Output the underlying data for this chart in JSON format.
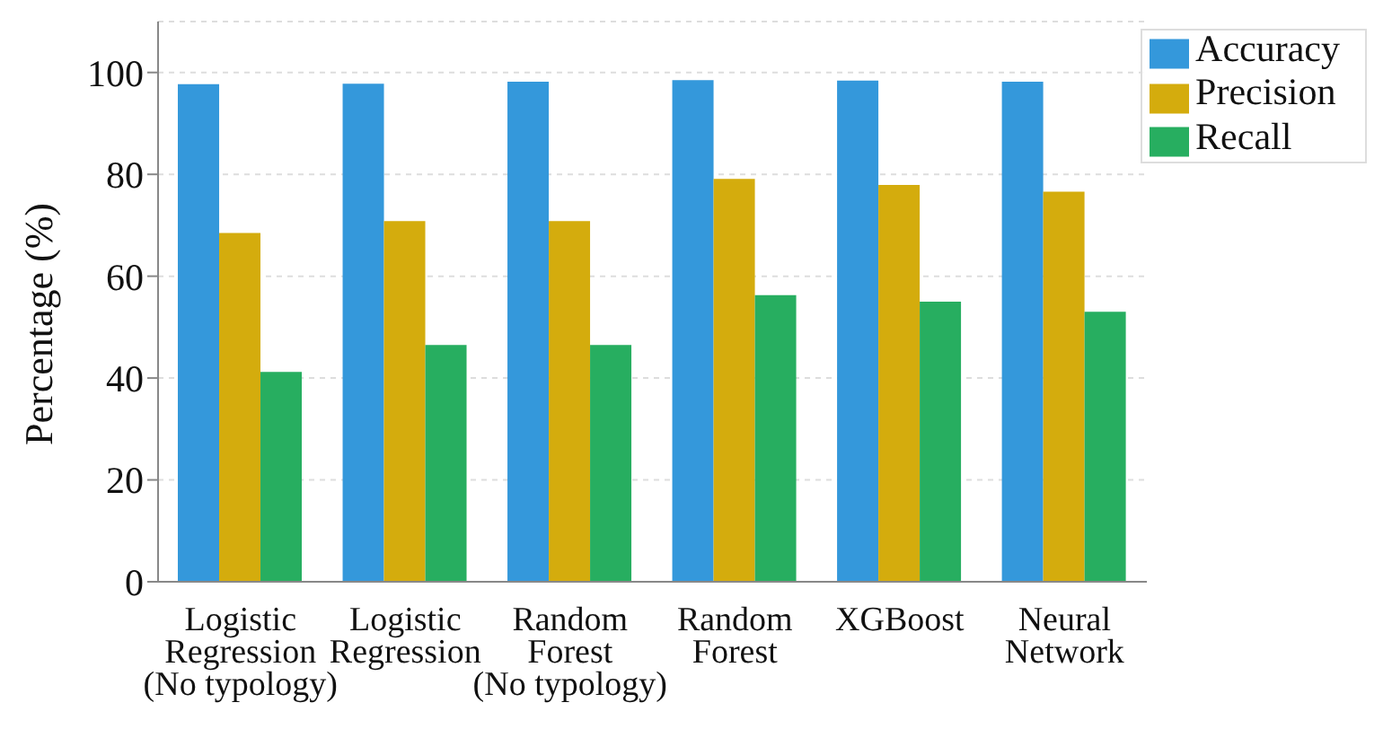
{
  "chart_data": {
    "type": "bar",
    "ylabel": "Percentage (%)",
    "categories": [
      "Logistic\nRegression\n(No typology)",
      "Logistic\nRegression",
      "Random\nForest\n(No typology)",
      "Random\nForest",
      "XGBoost",
      "Neural\nNetwork"
    ],
    "series": [
      {
        "name": "Accuracy",
        "color": "#3498db",
        "values": [
          97.7,
          97.8,
          98.2,
          98.5,
          98.4,
          98.2
        ]
      },
      {
        "name": "Precision",
        "color": "#d4ac0d",
        "values": [
          68.5,
          70.8,
          70.8,
          79.1,
          77.9,
          76.6
        ]
      },
      {
        "name": "Recall",
        "color": "#27ae60",
        "values": [
          41.2,
          46.5,
          46.5,
          56.3,
          55.0,
          53.0
        ]
      }
    ],
    "ylim": [
      0,
      110
    ],
    "yticks": [
      0,
      20,
      40,
      60,
      80,
      100
    ],
    "grid": "y",
    "legend": "top right"
  }
}
